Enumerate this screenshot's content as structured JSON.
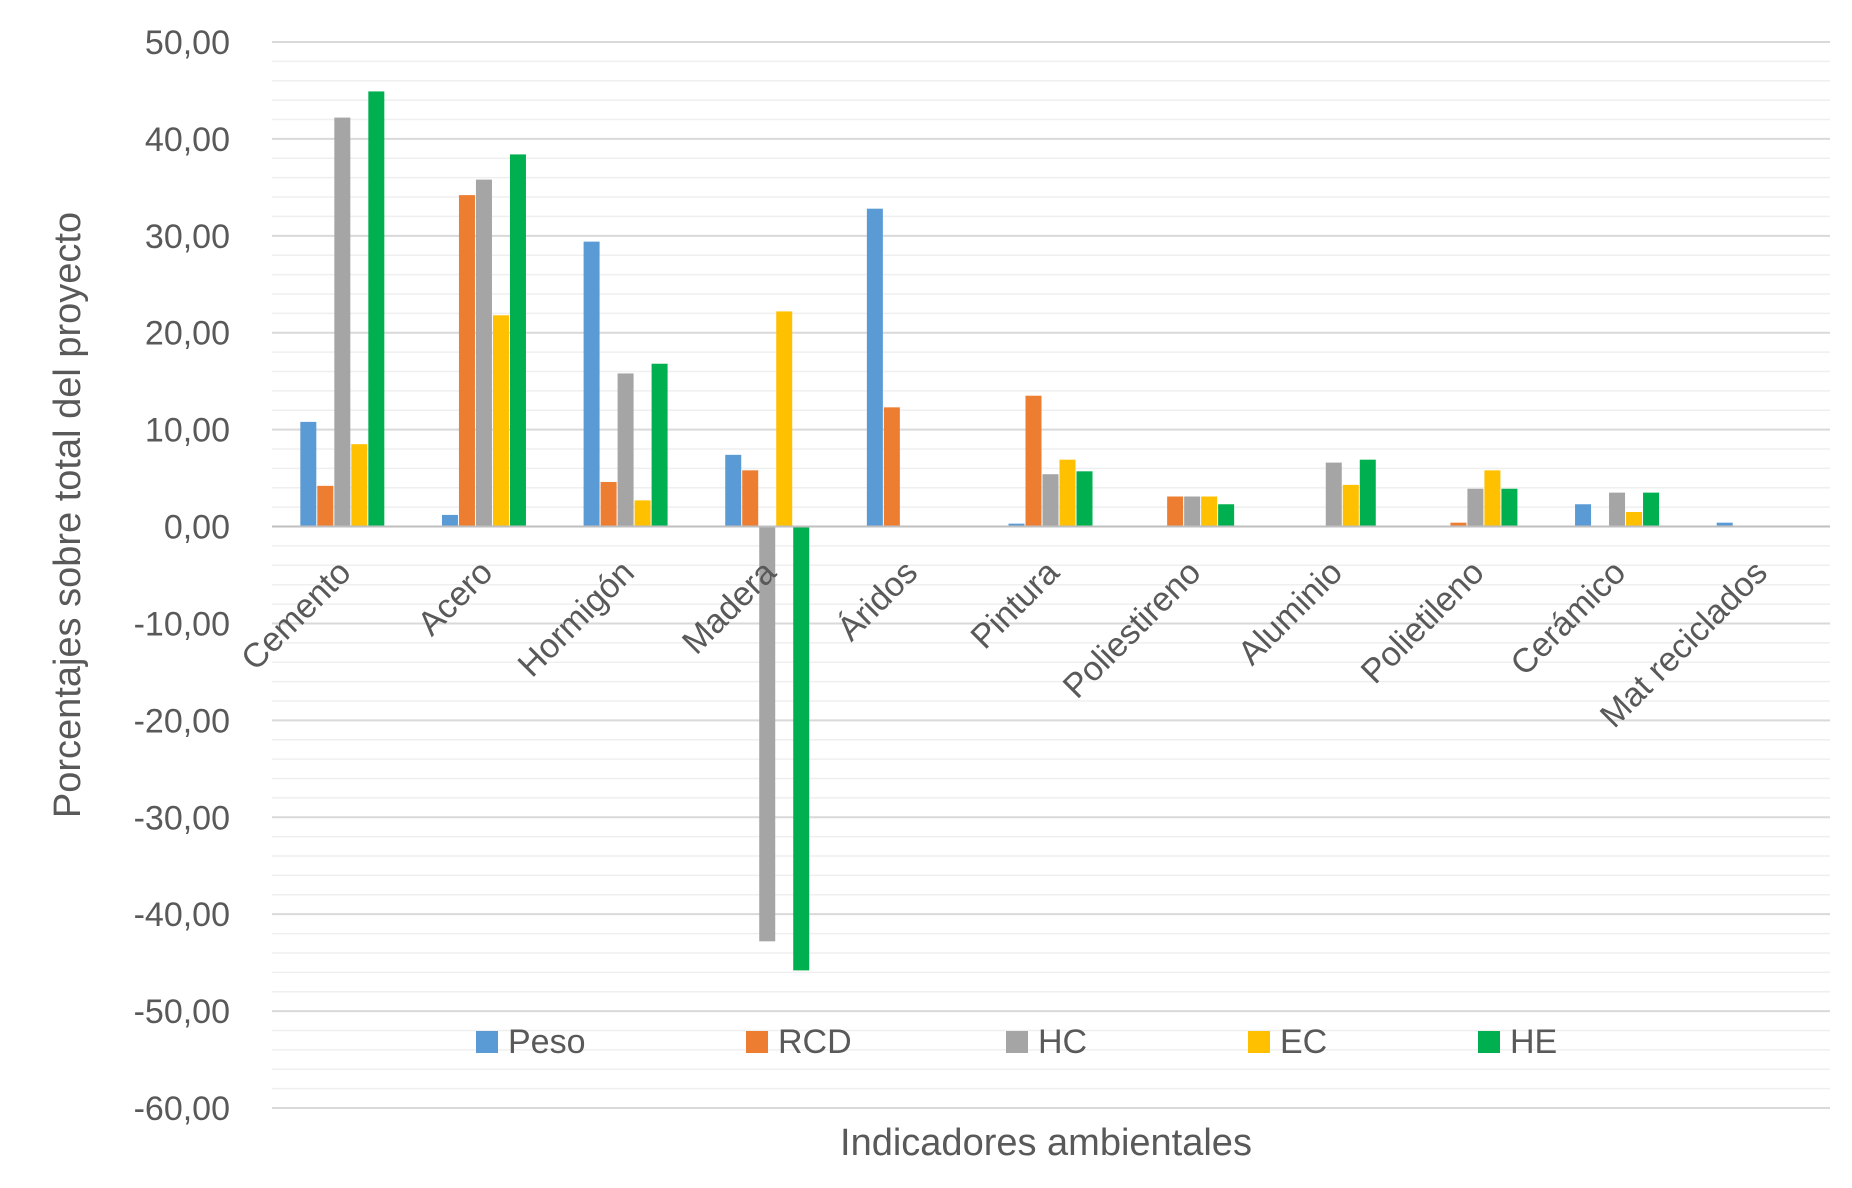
{
  "chart_data": {
    "type": "bar",
    "title": "",
    "xlabel": "Indicadores ambientales",
    "ylabel": "Porcentajes sobre total del proyecto",
    "ylim": [
      -60,
      50
    ],
    "ytick_step": 10,
    "ytick_labels": [
      "50,00",
      "40,00",
      "30,00",
      "20,00",
      "10,00",
      "0,00",
      "-10,00",
      "-20,00",
      "-30,00",
      "-40,00",
      "-50,00",
      "-60,00"
    ],
    "grid": true,
    "legend_position": "bottom-inside",
    "categories": [
      "Cemento",
      "Acero",
      "Hormigón",
      "Madera",
      "Áridos",
      "Pintura",
      "Poliestireno",
      "Aluminio",
      "Polietileno",
      "Cerámico",
      "Mat reciclados"
    ],
    "series": [
      {
        "name": "Peso",
        "color": "#5B9BD5",
        "values": [
          10.8,
          1.2,
          29.4,
          7.4,
          32.8,
          0.3,
          0,
          0,
          0,
          2.3,
          0.4
        ]
      },
      {
        "name": "RCD",
        "color": "#ED7D31",
        "values": [
          4.2,
          34.2,
          4.6,
          5.8,
          12.3,
          13.5,
          3.1,
          0,
          0.4,
          0,
          0
        ]
      },
      {
        "name": "HC",
        "color": "#A5A5A5",
        "values": [
          42.2,
          35.8,
          15.8,
          -42.8,
          0,
          5.4,
          3.1,
          6.6,
          3.9,
          3.5,
          0
        ]
      },
      {
        "name": "EC",
        "color": "#FFC000",
        "values": [
          8.5,
          21.8,
          2.7,
          22.2,
          0,
          6.9,
          3.1,
          4.3,
          5.8,
          1.5,
          0
        ]
      },
      {
        "name": "HE",
        "color": "#00B050",
        "values": [
          44.9,
          38.4,
          16.8,
          -45.8,
          0,
          5.7,
          2.3,
          6.9,
          3.9,
          3.5,
          0
        ]
      }
    ]
  }
}
